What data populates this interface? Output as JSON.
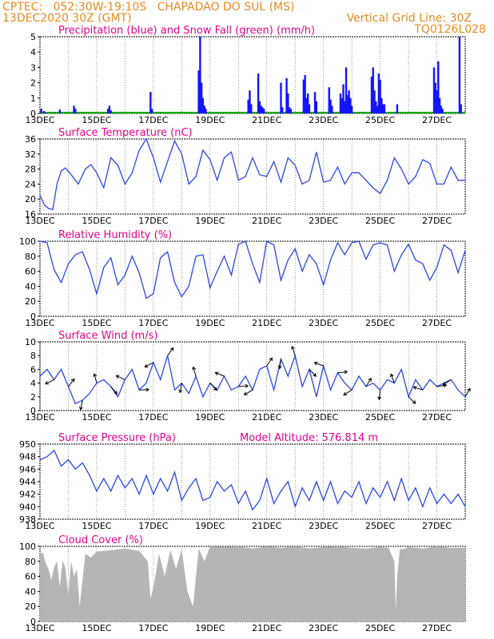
{
  "header": {
    "line1": "CPTEC:   052:30W-19:10S   CHAPADAO DO SUL (MS)",
    "line2": "13DEC2020 30Z (GMT)",
    "grid_note": "Vertical Grid Line: 30Z",
    "code": "TQ0126L028"
  },
  "colors": {
    "header": "#e98a1f",
    "title": "#e8008c",
    "precip": "#1414ff",
    "snow": "#00aa00",
    "line": "#2b47e8",
    "cloud": "#b5b5b5"
  },
  "chart_data": [
    {
      "id": "precip",
      "type": "bar",
      "title": "Precipitation (blue) and Snow Fall (green) (mm/h)",
      "ylim": [
        0,
        5
      ],
      "yticks": [
        "0",
        "1",
        "2",
        "3",
        "4",
        "5"
      ],
      "xticks": [
        "13DEC",
        "15DEC",
        "17DEC",
        "19DEC",
        "21DEC",
        "23DEC",
        "25DEC",
        "27DEC"
      ],
      "days": [
        13,
        14,
        15,
        16,
        17,
        18,
        19,
        20,
        21,
        22,
        23,
        24,
        25,
        26,
        27,
        28
      ],
      "precip": [
        [
          13.05,
          0.3
        ],
        [
          13.15,
          0.15
        ],
        [
          13.7,
          0.25
        ],
        [
          14.2,
          0.5
        ],
        [
          14.25,
          0.3
        ],
        [
          15.4,
          0.3
        ],
        [
          15.45,
          0.5
        ],
        [
          15.5,
          0.2
        ],
        [
          16.9,
          1.4
        ],
        [
          16.95,
          0.3
        ],
        [
          18.6,
          2.8
        ],
        [
          18.65,
          5.0
        ],
        [
          18.7,
          2.0
        ],
        [
          18.75,
          1.0
        ],
        [
          18.8,
          0.5
        ],
        [
          18.85,
          0.3
        ],
        [
          20.35,
          0.9
        ],
        [
          20.4,
          1.5
        ],
        [
          20.45,
          0.6
        ],
        [
          20.7,
          2.6
        ],
        [
          20.75,
          0.8
        ],
        [
          20.8,
          0.5
        ],
        [
          20.85,
          0.4
        ],
        [
          20.9,
          0.3
        ],
        [
          21.5,
          2.0
        ],
        [
          21.55,
          0.4
        ],
        [
          21.7,
          2.3
        ],
        [
          21.75,
          1.3
        ],
        [
          21.8,
          0.4
        ],
        [
          21.85,
          0.3
        ],
        [
          22.3,
          2.2
        ],
        [
          22.35,
          2.5
        ],
        [
          22.4,
          1.0
        ],
        [
          22.45,
          1.3
        ],
        [
          22.5,
          0.6
        ],
        [
          22.7,
          1.4
        ],
        [
          22.75,
          0.8
        ],
        [
          23.2,
          1.7
        ],
        [
          23.25,
          0.9
        ],
        [
          23.3,
          0.5
        ],
        [
          23.6,
          1.3
        ],
        [
          23.65,
          1.0
        ],
        [
          23.7,
          1.9
        ],
        [
          23.75,
          0.8
        ],
        [
          23.8,
          3.0
        ],
        [
          23.85,
          1.2
        ],
        [
          23.9,
          1.5
        ],
        [
          23.95,
          1.0
        ],
        [
          24.0,
          0.5
        ],
        [
          24.7,
          2.4
        ],
        [
          24.75,
          3.0
        ],
        [
          24.8,
          1.5
        ],
        [
          24.85,
          0.8
        ],
        [
          24.9,
          0.5
        ],
        [
          24.95,
          2.6
        ],
        [
          25.0,
          2.2
        ],
        [
          25.05,
          1.0
        ],
        [
          25.1,
          0.6
        ],
        [
          25.15,
          0.6
        ],
        [
          25.6,
          0.6
        ],
        [
          26.9,
          3.0
        ],
        [
          26.95,
          2.0
        ],
        [
          27.0,
          1.5
        ],
        [
          27.05,
          3.4
        ],
        [
          27.1,
          1.0
        ],
        [
          27.15,
          0.5
        ],
        [
          27.2,
          0.3
        ],
        [
          27.8,
          5.0
        ],
        [
          27.85,
          0.6
        ]
      ]
    },
    {
      "id": "temp",
      "type": "line",
      "title": "Surface Temperature (nC)",
      "ylim": [
        16,
        36
      ],
      "yticks": [
        "16",
        "20",
        "24",
        "28",
        "32",
        "36"
      ],
      "xticks": [
        "13DEC",
        "15DEC",
        "17DEC",
        "19DEC",
        "21DEC",
        "23DEC",
        "25DEC",
        "27DEC"
      ],
      "days": [
        13,
        14,
        15,
        16,
        17,
        18,
        19,
        20,
        21,
        22,
        23,
        24,
        25,
        26,
        27,
        28
      ],
      "x": [
        13.0,
        13.15,
        13.3,
        13.45,
        13.6,
        13.75,
        13.9,
        14.1,
        14.35,
        14.6,
        14.8,
        15.0,
        15.25,
        15.5,
        15.75,
        16.0,
        16.25,
        16.5,
        16.75,
        17.0,
        17.25,
        17.5,
        17.75,
        18.0,
        18.25,
        18.5,
        18.75,
        19.0,
        19.25,
        19.5,
        19.75,
        20.0,
        20.25,
        20.5,
        20.75,
        21.0,
        21.25,
        21.5,
        21.75,
        22.0,
        22.25,
        22.5,
        22.75,
        23.0,
        23.25,
        23.5,
        23.75,
        24.0,
        24.25,
        24.5,
        24.75,
        25.0,
        25.25,
        25.5,
        25.75,
        26.0,
        26.25,
        26.5,
        26.75,
        27.0,
        27.25,
        27.5,
        27.75,
        28.0
      ],
      "y": [
        21,
        18.5,
        17.5,
        17.2,
        24,
        27.5,
        28.3,
        26.5,
        24,
        28,
        29.2,
        27,
        23,
        31,
        29,
        24,
        27,
        33,
        36,
        31,
        24.5,
        30,
        35.5,
        32,
        24,
        26,
        33,
        30.5,
        25,
        31,
        32.5,
        25,
        26,
        31,
        26.5,
        26,
        30,
        24.5,
        31,
        29,
        24,
        25,
        32.5,
        24.5,
        25,
        28.5,
        24,
        27,
        27,
        25,
        23,
        21.5,
        25,
        31,
        28,
        24,
        26,
        30.5,
        29.5,
        24,
        24,
        28.5,
        25,
        25
      ]
    },
    {
      "id": "rh",
      "type": "line",
      "title": "Relative Humidity (%)",
      "ylim": [
        0,
        100
      ],
      "yticks": [
        "0",
        "20",
        "40",
        "60",
        "80",
        "100"
      ],
      "xticks": [
        "13DEC",
        "15DEC",
        "17DEC",
        "19DEC",
        "21DEC",
        "23DEC",
        "25DEC",
        "27DEC"
      ],
      "days": [
        13,
        14,
        15,
        16,
        17,
        18,
        19,
        20,
        21,
        22,
        23,
        24,
        25,
        26,
        27,
        28
      ],
      "x": [
        13.0,
        13.25,
        13.5,
        13.75,
        14.0,
        14.25,
        14.5,
        14.75,
        15.0,
        15.25,
        15.5,
        15.75,
        16.0,
        16.25,
        16.5,
        16.75,
        17.0,
        17.25,
        17.5,
        17.75,
        18.0,
        18.25,
        18.5,
        18.75,
        19.0,
        19.25,
        19.5,
        19.75,
        20.0,
        20.25,
        20.5,
        20.75,
        21.0,
        21.25,
        21.5,
        21.75,
        22.0,
        22.25,
        22.5,
        22.75,
        23.0,
        23.25,
        23.5,
        23.75,
        24.0,
        24.25,
        24.5,
        24.75,
        25.0,
        25.25,
        25.5,
        25.75,
        26.0,
        26.25,
        26.5,
        26.75,
        27.0,
        27.25,
        27.5,
        27.75,
        28.0
      ],
      "y": [
        100,
        98,
        62,
        45,
        70,
        82,
        86,
        62,
        30,
        65,
        78,
        42,
        55,
        80,
        58,
        24,
        30,
        78,
        86,
        45,
        26,
        40,
        80,
        82,
        38,
        60,
        80,
        55,
        96,
        100,
        70,
        45,
        100,
        95,
        48,
        75,
        90,
        60,
        82,
        70,
        42,
        75,
        98,
        82,
        98,
        100,
        76,
        95,
        98,
        95,
        60,
        82,
        96,
        75,
        70,
        48,
        65,
        95,
        88,
        58,
        88
      ]
    },
    {
      "id": "wind",
      "type": "line",
      "title": "Surface Wind (m/s)",
      "ylim": [
        0,
        10
      ],
      "yticks": [
        "0",
        "2",
        "4",
        "6",
        "8",
        "10"
      ],
      "xticks": [
        "13DEC",
        "15DEC",
        "17DEC",
        "19DEC",
        "21DEC",
        "23DEC",
        "25DEC",
        "27DEC"
      ],
      "days": [
        13,
        14,
        15,
        16,
        17,
        18,
        19,
        20,
        21,
        22,
        23,
        24,
        25,
        26,
        27,
        28
      ],
      "x": [
        13.0,
        13.25,
        13.5,
        13.75,
        14.0,
        14.25,
        14.5,
        14.75,
        15.0,
        15.25,
        15.5,
        15.75,
        16.0,
        16.25,
        16.5,
        16.75,
        17.0,
        17.25,
        17.5,
        17.75,
        18.0,
        18.25,
        18.5,
        18.75,
        19.0,
        19.25,
        19.5,
        19.75,
        20.0,
        20.25,
        20.5,
        20.75,
        21.0,
        21.25,
        21.5,
        21.75,
        22.0,
        22.25,
        22.5,
        22.75,
        23.0,
        23.25,
        23.5,
        23.75,
        24.0,
        24.25,
        24.5,
        24.75,
        25.0,
        25.25,
        25.5,
        25.75,
        26.0,
        26.25,
        26.5,
        26.75,
        27.0,
        27.25,
        27.5,
        27.75,
        28.0
      ],
      "y": [
        5,
        6,
        4.5,
        6,
        3.5,
        1,
        1.5,
        2.5,
        4,
        4.5,
        3.5,
        2,
        4.5,
        6,
        3,
        4,
        7,
        4.5,
        8,
        3,
        4,
        2.5,
        5,
        2,
        4,
        3,
        5,
        3,
        3.5,
        5,
        3,
        6,
        6.5,
        3,
        7.5,
        5,
        8,
        3.5,
        6,
        2,
        6.5,
        3,
        5.5,
        4,
        3,
        5,
        3.5,
        4,
        3,
        4.5,
        4,
        6,
        2,
        4.5,
        3,
        4.5,
        3.5,
        4,
        4.5,
        3,
        2
      ]
    },
    {
      "id": "pres",
      "type": "line",
      "title": "Surface Pressure (hPa)",
      "annotation": "Model Altitude: 576.814  m",
      "ylim": [
        938,
        950
      ],
      "yticks": [
        "938",
        "940",
        "942",
        "944",
        "946",
        "948",
        "950"
      ],
      "xticks": [
        "13DEC",
        "15DEC",
        "17DEC",
        "19DEC",
        "21DEC",
        "23DEC",
        "25DEC",
        "27DEC"
      ],
      "days": [
        13,
        14,
        15,
        16,
        17,
        18,
        19,
        20,
        21,
        22,
        23,
        24,
        25,
        26,
        27,
        28
      ],
      "x": [
        13.0,
        13.25,
        13.5,
        13.75,
        14.0,
        14.25,
        14.5,
        14.75,
        15.0,
        15.25,
        15.5,
        15.75,
        16.0,
        16.25,
        16.5,
        16.75,
        17.0,
        17.25,
        17.5,
        17.75,
        18.0,
        18.25,
        18.5,
        18.75,
        19.0,
        19.25,
        19.5,
        19.75,
        20.0,
        20.25,
        20.5,
        20.75,
        21.0,
        21.25,
        21.5,
        21.75,
        22.0,
        22.25,
        22.5,
        22.75,
        23.0,
        23.25,
        23.5,
        23.75,
        24.0,
        24.25,
        24.5,
        24.75,
        25.0,
        25.25,
        25.5,
        25.75,
        26.0,
        26.25,
        26.5,
        26.75,
        27.0,
        27.25,
        27.5,
        27.75,
        28.0
      ],
      "y": [
        947.5,
        948,
        949,
        946.5,
        947.5,
        946,
        947,
        945,
        942.5,
        944.5,
        942.5,
        945,
        943,
        944.5,
        942,
        945,
        942,
        944.5,
        942.5,
        945.5,
        941,
        943,
        944.5,
        941,
        941.5,
        944,
        942.5,
        943.5,
        940.5,
        942.5,
        939.5,
        941,
        944.5,
        940.5,
        942.5,
        944,
        940,
        943,
        941,
        944,
        941,
        944,
        940.5,
        942.5,
        941.5,
        944,
        940.5,
        943,
        941.5,
        944,
        941,
        944.5,
        941,
        943,
        940,
        943,
        940.5,
        942,
        940.5,
        942,
        940
      ]
    },
    {
      "id": "cloud",
      "type": "area",
      "title": "Cloud Cover (%)",
      "ylim": [
        0,
        100
      ],
      "yticks": [
        "0",
        "20",
        "40",
        "60",
        "80",
        "100"
      ],
      "xticks": [
        "13DEC",
        "15DEC",
        "17DEC",
        "19DEC",
        "21DEC",
        "23DEC",
        "25DEC",
        "27DEC"
      ],
      "days": [
        13,
        14,
        15,
        16,
        17,
        18,
        19,
        20,
        21,
        22,
        23,
        24,
        25,
        26,
        27,
        28
      ],
      "x": [
        13.0,
        13.1,
        13.2,
        13.3,
        13.4,
        13.5,
        13.6,
        13.7,
        13.8,
        13.9,
        14.0,
        14.1,
        14.2,
        14.3,
        14.4,
        14.5,
        14.6,
        14.8,
        15.0,
        15.5,
        16.0,
        16.5,
        16.8,
        16.9,
        17.0,
        17.2,
        17.4,
        17.6,
        17.8,
        18.0,
        18.2,
        18.4,
        18.5,
        18.6,
        18.8,
        19.0,
        19.5,
        20.0,
        20.5,
        21.0,
        21.5,
        22.0,
        22.5,
        23.0,
        23.5,
        24.0,
        24.5,
        25.0,
        25.3,
        25.5,
        25.55,
        25.6,
        25.7,
        25.8,
        26.0,
        26.5,
        27.0,
        27.5,
        28.0
      ],
      "y": [
        88,
        92,
        78,
        70,
        55,
        72,
        80,
        45,
        82,
        70,
        35,
        80,
        60,
        70,
        20,
        55,
        90,
        85,
        93,
        95,
        97,
        94,
        80,
        30,
        45,
        90,
        60,
        95,
        70,
        96,
        40,
        20,
        60,
        97,
        80,
        100,
        99,
        100,
        97,
        100,
        98,
        100,
        97,
        99,
        100,
        98,
        97,
        99,
        98,
        80,
        15,
        60,
        97,
        96,
        99,
        97,
        100,
        98,
        98
      ]
    }
  ]
}
